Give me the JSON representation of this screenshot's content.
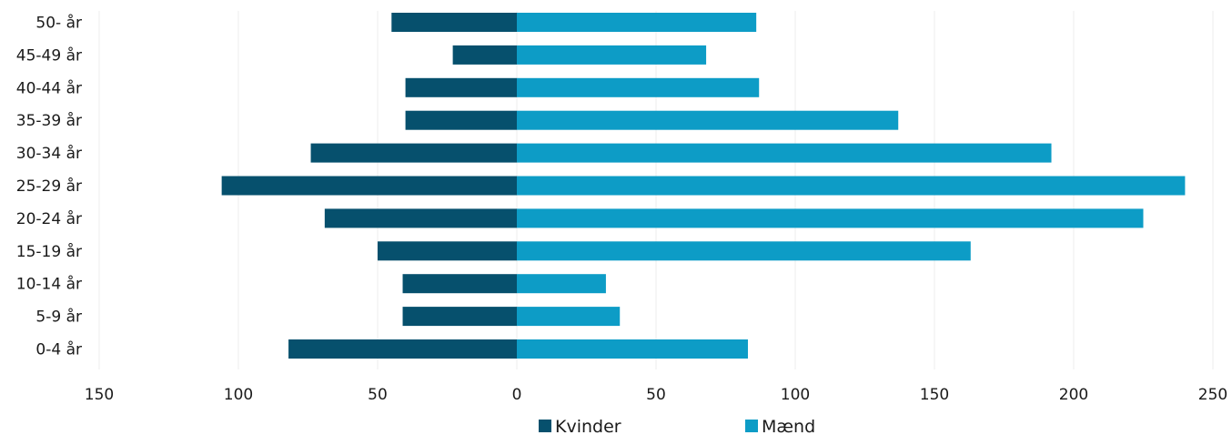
{
  "chart_data": {
    "type": "bar",
    "orientation": "horizontal-diverging",
    "categories": [
      "50- år",
      "45-49 år",
      "40-44 år",
      "35-39 år",
      "30-34 år",
      "25-29 år",
      "20-24 år",
      "15-19 år",
      "10-14 år",
      "5-9 år",
      "0-4 år"
    ],
    "series": [
      {
        "name": "Kvinder",
        "color": "#06506d",
        "direction": "left",
        "values": [
          45,
          23,
          40,
          40,
          74,
          106,
          69,
          50,
          41,
          41,
          82
        ]
      },
      {
        "name": "Mænd",
        "color": "#0d9cc6",
        "direction": "right",
        "values": [
          86,
          68,
          87,
          137,
          192,
          240,
          225,
          163,
          32,
          37,
          83
        ]
      }
    ],
    "xlim": [
      -150,
      250
    ],
    "xticks": [
      -150,
      -100,
      -50,
      0,
      50,
      100,
      150,
      200,
      250
    ],
    "xtick_labels": [
      "150",
      "100",
      "50",
      "0",
      "50",
      "100",
      "150",
      "200",
      "250"
    ],
    "grid": "vertical",
    "legend": {
      "position": "bottom-center",
      "entries": [
        "Kvinder",
        "Mænd"
      ]
    }
  }
}
